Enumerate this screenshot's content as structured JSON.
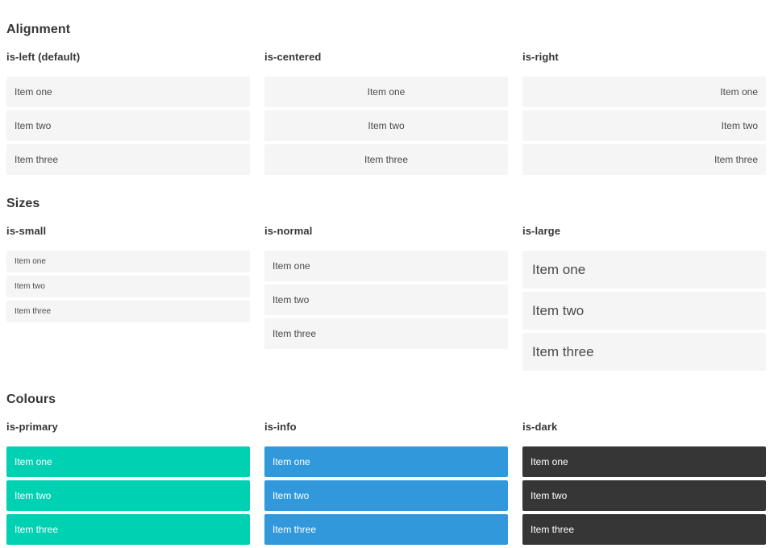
{
  "colors": {
    "page_background": "#ffffff",
    "heading_text": "#363636",
    "item_background": "#f5f5f5",
    "item_text": "#4a4a4a",
    "primary": "#00d1b2",
    "info": "#3298dc",
    "dark": "#363636",
    "text_on_color": "#ffffff"
  },
  "sections": [
    {
      "title": "Alignment",
      "columns": [
        {
          "heading": "is-left (default)",
          "items": [
            "Item one",
            "Item two",
            "Item three"
          ]
        },
        {
          "heading": "is-centered",
          "items": [
            "Item one",
            "Item two",
            "Item three"
          ]
        },
        {
          "heading": "is-right",
          "items": [
            "Item one",
            "Item two",
            "Item three"
          ]
        }
      ]
    },
    {
      "title": "Sizes",
      "columns": [
        {
          "heading": "is-small",
          "items": [
            "Item one",
            "Item two",
            "Item three"
          ]
        },
        {
          "heading": "is-normal",
          "items": [
            "Item one",
            "Item two",
            "Item three"
          ]
        },
        {
          "heading": "is-large",
          "items": [
            "Item one",
            "Item two",
            "Item three"
          ]
        }
      ]
    },
    {
      "title": "Colours",
      "columns": [
        {
          "heading": "is-primary",
          "items": [
            "Item one",
            "Item two",
            "Item three"
          ]
        },
        {
          "heading": "is-info",
          "items": [
            "Item one",
            "Item two",
            "Item three"
          ]
        },
        {
          "heading": "is-dark",
          "items": [
            "Item one",
            "Item two",
            "Item three"
          ]
        }
      ]
    }
  ]
}
